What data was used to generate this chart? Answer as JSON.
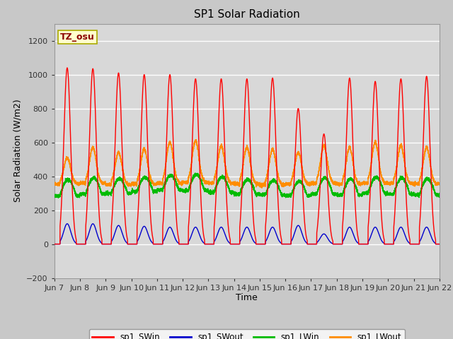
{
  "title": "SP1 Solar Radiation",
  "xlabel": "Time",
  "ylabel": "Solar Radiation (W/m2)",
  "ylim": [
    -200,
    1300
  ],
  "yticks": [
    -200,
    0,
    200,
    400,
    600,
    800,
    1000,
    1200
  ],
  "annotation_text": "TZ_osu",
  "annotation_color": "#8B0000",
  "annotation_bg": "#FFFFCC",
  "annotation_border": "#AAAA00",
  "colors": {
    "SWin": "#FF0000",
    "SWout": "#0000CC",
    "LWin": "#00BB00",
    "LWout": "#FF8C00"
  },
  "legend_labels": [
    "sp1_SWin",
    "sp1_SWout",
    "sp1_LWin",
    "sp1_LWout"
  ],
  "n_days": 15,
  "fig_bg": "#C8C8C8",
  "plot_bg": "#D8D8D8",
  "grid_color": "#FFFFFF",
  "tick_labels": [
    "Jun 7",
    "Jun 8",
    "Jun 9",
    "Jun 10",
    "Jun 11",
    "Jun 12",
    "Jun 13",
    "Jun 14",
    "Jun 15",
    "Jun 16",
    "Jun 17",
    "Jun 18",
    "Jun 19",
    "Jun 20",
    "Jun 21",
    "Jun 22"
  ],
  "SWin_peaks": [
    1040,
    1035,
    1010,
    1000,
    1000,
    975,
    975,
    975,
    980,
    800,
    650,
    980,
    960,
    975,
    990
  ],
  "SWout_peaks": [
    120,
    120,
    110,
    105,
    100,
    100,
    100,
    100,
    100,
    110,
    60,
    100,
    100,
    100,
    100
  ],
  "LWout_peaks": [
    510,
    570,
    540,
    560,
    600,
    610,
    580,
    570,
    560,
    540,
    580,
    570,
    600,
    580,
    570
  ],
  "LWout_night": [
    355,
    360,
    350,
    355,
    360,
    365,
    360,
    355,
    350,
    355,
    360,
    355,
    360,
    358,
    355
  ],
  "LWin_day": [
    380,
    390,
    385,
    395,
    405,
    410,
    395,
    380,
    375,
    370,
    390,
    385,
    395,
    390,
    385
  ],
  "LWin_night": [
    285,
    295,
    300,
    310,
    320,
    315,
    305,
    295,
    290,
    285,
    295,
    290,
    300,
    295,
    290
  ]
}
